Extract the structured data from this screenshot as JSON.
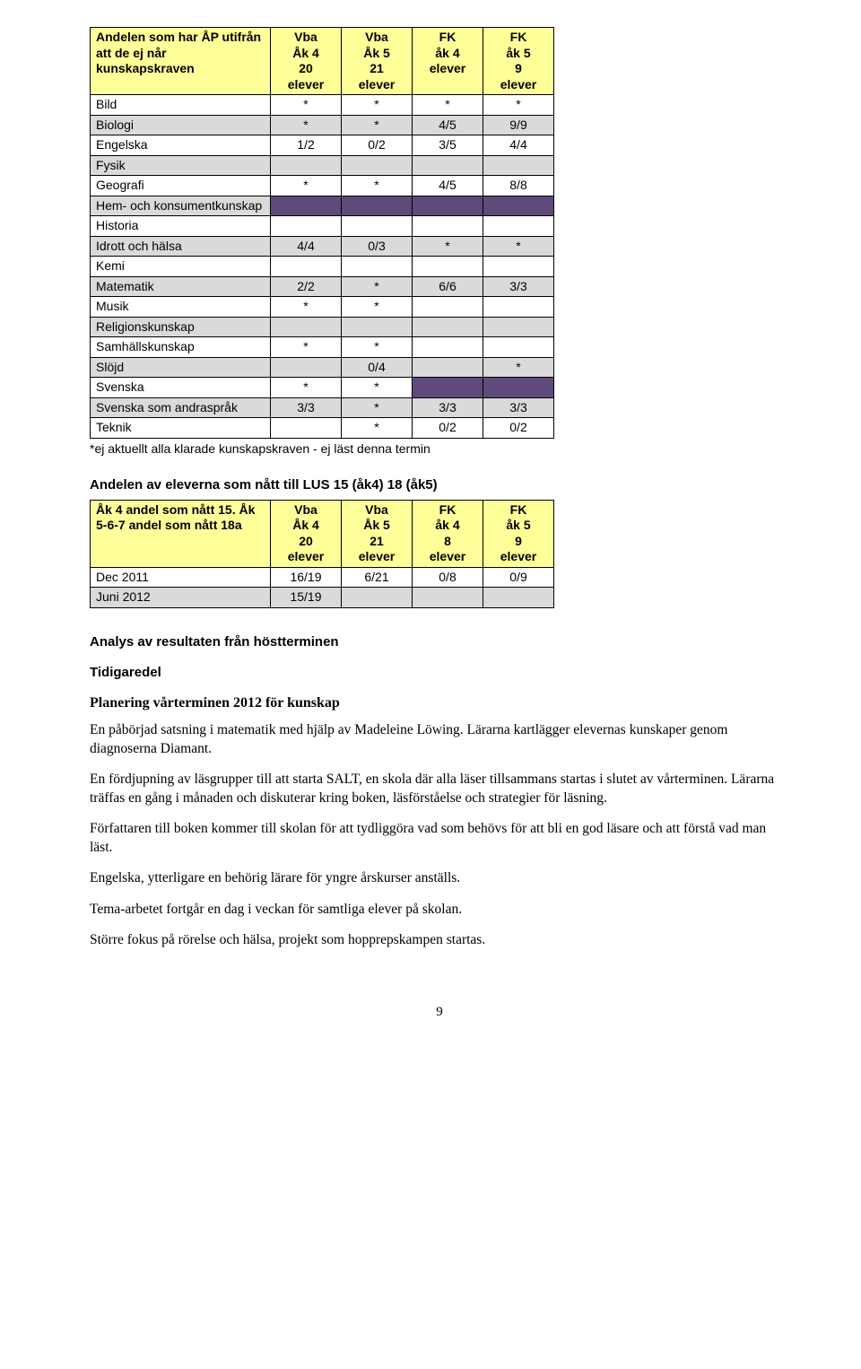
{
  "table1": {
    "header": {
      "rowhead": "Andelen som har ÅP utifrån att de ej når kunskapskraven",
      "cols": [
        "Vba\nÅk 4\n20\nelever",
        "Vba\nÅk 5\n21\nelever",
        "FK\nåk 4\nelever",
        "FK\nåk 5\n9\nelever"
      ]
    },
    "rows": [
      {
        "label": "Bild",
        "cells": [
          "*",
          "*",
          "*",
          "*"
        ],
        "shade": false
      },
      {
        "label": "Biologi",
        "cells": [
          "*",
          "*",
          "4/5",
          "9/9"
        ],
        "shade": true
      },
      {
        "label": "Engelska",
        "cells": [
          "1/2",
          "0/2",
          "3/5",
          "4/4"
        ],
        "shade": false
      },
      {
        "label": "Fysik",
        "cells": [
          "",
          "",
          "",
          ""
        ],
        "shade": true
      },
      {
        "label": "Geografi",
        "cells": [
          "*",
          "*",
          "4/5",
          "8/8"
        ],
        "shade": false
      },
      {
        "label": "Hem- och konsumentkunskap",
        "cells": [
          "",
          "",
          "",
          ""
        ],
        "shade": true,
        "purple": true
      },
      {
        "label": "Historia",
        "cells": [
          "",
          "",
          "",
          ""
        ],
        "shade": false
      },
      {
        "label": "Idrott och hälsa",
        "cells": [
          "4/4",
          "0/3",
          "*",
          "*"
        ],
        "shade": true
      },
      {
        "label": "Kemi",
        "cells": [
          "",
          "",
          "",
          ""
        ],
        "shade": false
      },
      {
        "label": "Matematik",
        "cells": [
          "2/2",
          "*",
          "6/6",
          "3/3"
        ],
        "shade": true
      },
      {
        "label": "Musik",
        "cells": [
          "*",
          "*",
          "",
          ""
        ],
        "shade": false
      },
      {
        "label": "Religionskunskap",
        "cells": [
          "",
          "",
          "",
          ""
        ],
        "shade": true
      },
      {
        "label": "Samhällskunskap",
        "cells": [
          "*",
          "*",
          "",
          ""
        ],
        "shade": false
      },
      {
        "label": "Slöjd",
        "cells": [
          "",
          "0/4",
          "",
          "*"
        ],
        "shade": true
      },
      {
        "label": "Svenska",
        "cells": [
          "*",
          "*",
          "",
          ""
        ],
        "shade": false,
        "purpleLast2": true
      },
      {
        "label": "Svenska som andraspråk",
        "cells": [
          "3/3",
          "*",
          "3/3",
          "3/3"
        ],
        "shade": true
      },
      {
        "label": "Teknik",
        "cells": [
          "",
          "*",
          "0/2",
          "0/2"
        ],
        "shade": false
      }
    ],
    "footnote": "*ej aktuellt alla klarade kunskapskraven  - ej läst denna termin"
  },
  "table2": {
    "title": "Andelen av eleverna som nått till LUS 15 (åk4) 18 (åk5)",
    "header": {
      "rowhead": "Åk 4 andel som nått 15. Åk 5-6-7 andel som nått 18a",
      "cols": [
        "Vba\nÅk 4\n20\nelever",
        "Vba\nÅk 5\n21\nelever",
        "FK\nåk 4\n8\nelever",
        "FK\nåk 5\n9\nelever"
      ]
    },
    "rows": [
      {
        "label": "Dec 2011",
        "cells": [
          "16/19",
          "6/21",
          "0/8",
          "0/9"
        ],
        "shade": false
      },
      {
        "label": "Juni 2012",
        "cells": [
          "15/19",
          "",
          "",
          ""
        ],
        "shade": true
      }
    ]
  },
  "text": {
    "analysHeading": "Analys av resultaten från höstterminen",
    "tidigaredel": "Tidigaredel",
    "planHeading": "Planering vårterminen 2012 för kunskap",
    "p1": "En påbörjad satsning i matematik med hjälp av Madeleine Löwing. Lärarna kartlägger elevernas kunskaper genom diagnoserna Diamant.",
    "p2": "En fördjupning av läsgrupper till att starta SALT, en skola där alla läser tillsammans startas i slutet av vårterminen. Lärarna träffas en gång i månaden och diskuterar kring boken, läsförståelse och strategier för läsning.",
    "p3": "Författaren till boken kommer till skolan för att tydliggöra vad som behövs för att bli en god läsare och att förstå vad man läst.",
    "p4": "Engelska, ytterligare en behörig lärare för yngre årskurser anställs.",
    "p5": "Tema-arbetet fortgår en dag i veckan för samtliga elever på skolan.",
    "p6": "Större fokus på rörelse och hälsa, projekt som hopprepskampen startas.",
    "pageNum": "9"
  },
  "colors": {
    "headerBg": "#ffff99",
    "shadedBg": "#dadada",
    "purpleBg": "#604a7b"
  }
}
